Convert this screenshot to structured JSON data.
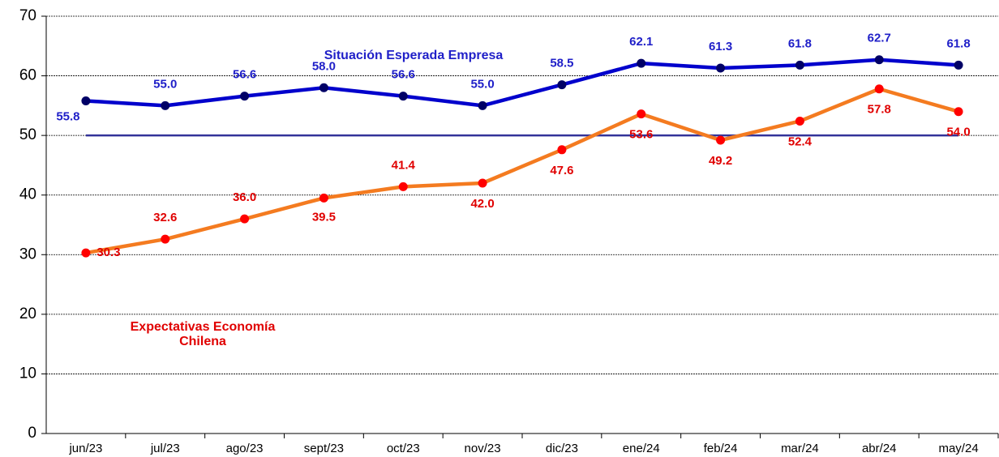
{
  "chart_data": {
    "type": "line",
    "categories": [
      "jun/23",
      "jul/23",
      "ago/23",
      "sept/23",
      "oct/23",
      "nov/23",
      "dic/23",
      "ene/24",
      "feb/24",
      "mar/24",
      "abr/24",
      "may/24"
    ],
    "series": [
      {
        "name": "Situación Esperada Empresa",
        "color": "#0000cc",
        "marker_color": "#000066",
        "label_color": "#1f1fc8",
        "values": [
          55.8,
          55.0,
          56.6,
          58.0,
          56.6,
          55.0,
          58.5,
          62.1,
          61.3,
          61.8,
          62.7,
          61.8
        ],
        "value_labels": [
          "55.8",
          "55.0",
          "56.6",
          "58.0",
          "56.6",
          "55.0",
          "58.5",
          "62.1",
          "61.3",
          "61.8",
          "62.7",
          "61.8"
        ]
      },
      {
        "name": "Expectativas Economía Chilena",
        "color": "#f47b20",
        "marker_color": "#ff0000",
        "label_color": "#e00000",
        "values": [
          30.3,
          32.6,
          36.0,
          39.5,
          41.4,
          42.0,
          47.6,
          53.6,
          49.2,
          52.4,
          57.8,
          54.0
        ],
        "value_labels": [
          "30.3",
          "32.6",
          "36.0",
          "39.5",
          "41.4",
          "42.0",
          "47.6",
          "53.6",
          "49.2",
          "52.4",
          "57.8",
          "54.0"
        ]
      }
    ],
    "reference_line": 50,
    "reference_color": "#333399",
    "ylim": [
      0,
      70
    ],
    "yticks": [
      0,
      10,
      20,
      30,
      40,
      50,
      60,
      70
    ],
    "grid": true
  }
}
